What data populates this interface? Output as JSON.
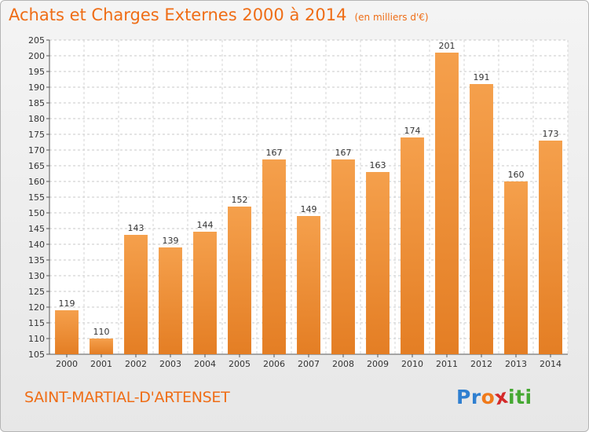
{
  "title": "Achats et Charges Externes 2000 à 2014",
  "unit": "(en milliers d'€)",
  "commune": "SAINT-MARTIAL-D'ARTENSET",
  "logo": {
    "letters": [
      "P",
      "r",
      "o",
      "x",
      "i",
      "t",
      "i"
    ],
    "colors": [
      "#2f7fd0",
      "#2f7fd0",
      "#f07a1a",
      "#d42a2a",
      "#45a832",
      "#45a832",
      "#45a832"
    ]
  },
  "colors": {
    "bar": "#f5a04c",
    "bar_dark": "#e47e24",
    "title": "#ef6d16"
  },
  "chart_data": {
    "type": "bar",
    "categories": [
      "2000",
      "2001",
      "2002",
      "2003",
      "2004",
      "2005",
      "2006",
      "2007",
      "2008",
      "2009",
      "2010",
      "2011",
      "2012",
      "2013",
      "2014"
    ],
    "values": [
      119,
      110,
      143,
      139,
      144,
      152,
      167,
      149,
      167,
      163,
      174,
      201,
      191,
      160,
      173
    ],
    "ylim": [
      105,
      205
    ],
    "yticks": [
      105,
      110,
      115,
      120,
      125,
      130,
      135,
      140,
      145,
      150,
      155,
      160,
      165,
      170,
      175,
      180,
      185,
      190,
      195,
      200,
      205
    ],
    "grid": true,
    "title": "Achats et Charges Externes 2000 à 2014",
    "xlabel": "",
    "ylabel": ""
  }
}
